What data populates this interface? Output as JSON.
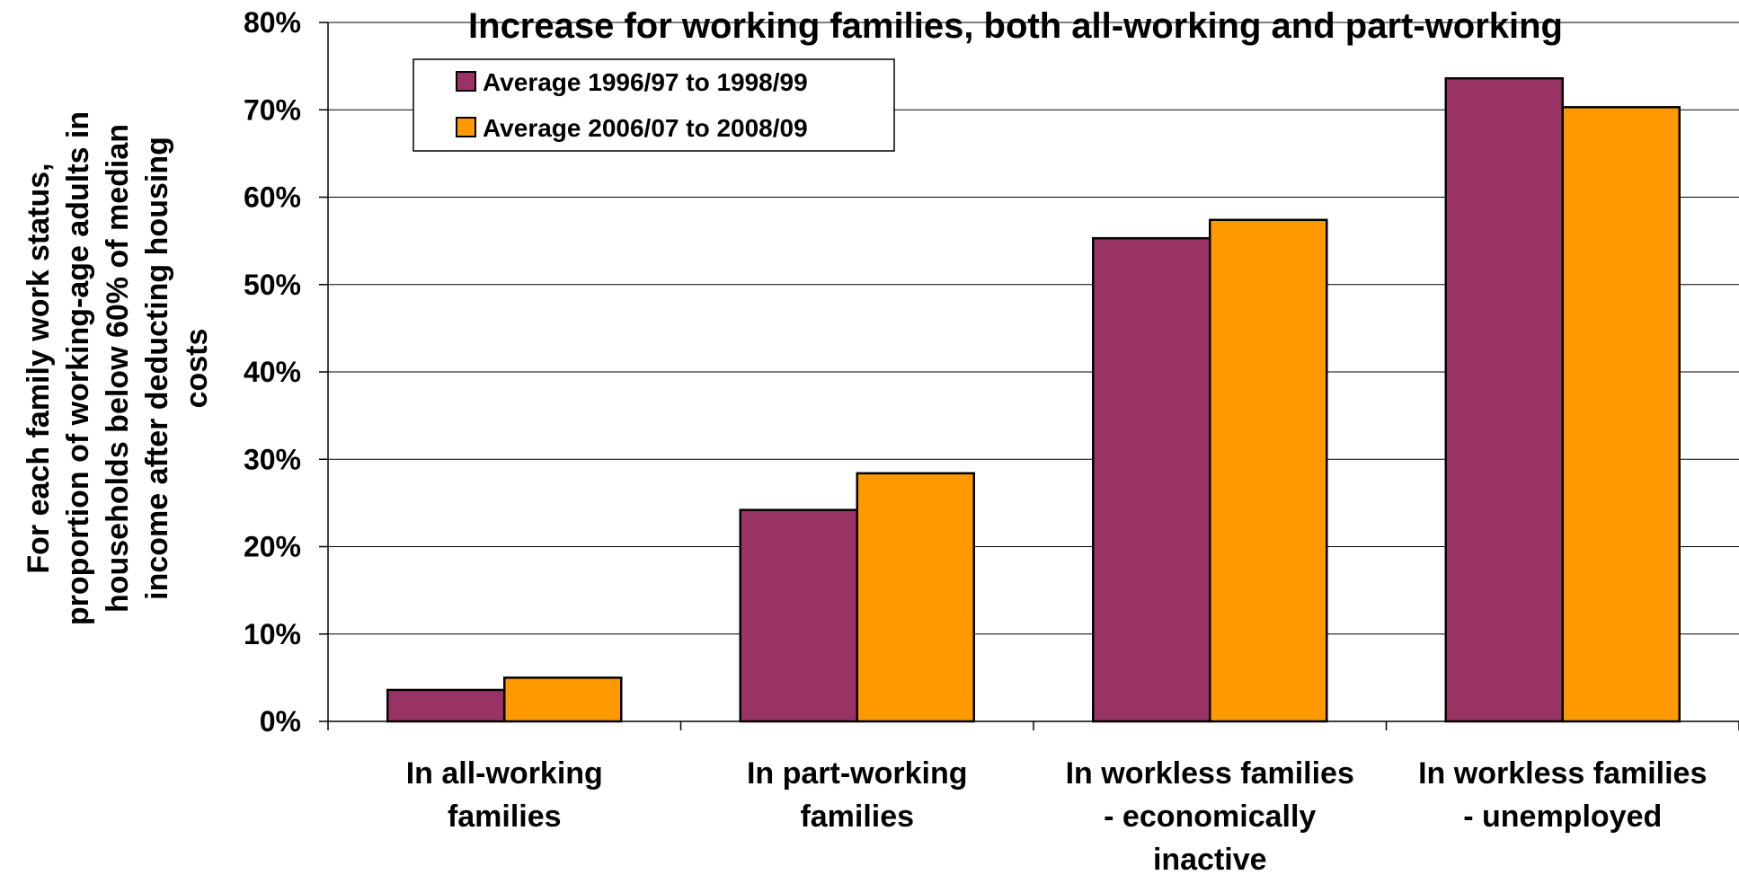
{
  "chart_data": {
    "type": "bar",
    "title": "Increase for working families, both all-working and part-working",
    "ylabel": "For each family work status, proportion of working-age adults in households below 60% of median income after deducting housing costs",
    "ylabel_lines": [
      "For each family work status,",
      "proportion of working-age adults in",
      "households below 60% of median",
      "income after deducting housing",
      "costs"
    ],
    "xlabel": "",
    "ylim": [
      0,
      80
    ],
    "yticks": [
      "0%",
      "10%",
      "20%",
      "30%",
      "40%",
      "50%",
      "60%",
      "70%",
      "80%"
    ],
    "categories": [
      "In all-working families",
      "In part-working families",
      "In workless families - economically inactive",
      "In workless families - unemployed"
    ],
    "category_lines": [
      [
        "In all-working",
        "families"
      ],
      [
        "In part-working",
        "families"
      ],
      [
        "In workless families",
        "- economically",
        "inactive"
      ],
      [
        "In workless families",
        "- unemployed"
      ]
    ],
    "series": [
      {
        "name": "Average 1996/97 to 1998/99",
        "color": "#993366",
        "values": [
          3.6,
          24.2,
          55.3,
          73.6
        ]
      },
      {
        "name": "Average 2006/07 to 2008/09",
        "color": "#FF9900",
        "values": [
          5.0,
          28.4,
          57.4,
          70.3
        ]
      }
    ],
    "grid": true,
    "legend": "top-left"
  }
}
